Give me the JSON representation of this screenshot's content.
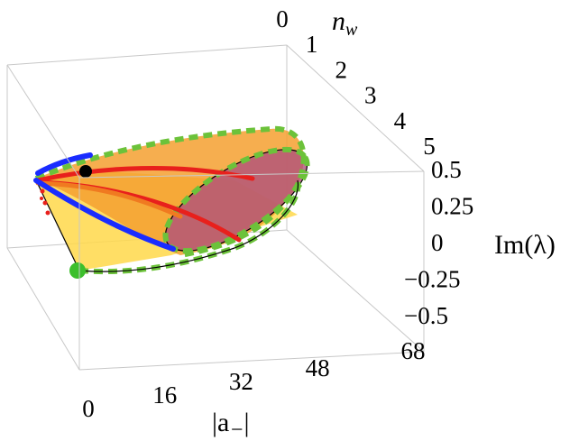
{
  "chart_data": {
    "type": "3d-surface",
    "title": "",
    "axes": {
      "x": {
        "label": "|a−|",
        "ticks": [
          "0",
          "16",
          "32",
          "48",
          "68"
        ],
        "range": [
          0,
          68
        ]
      },
      "y": {
        "label": "n_w",
        "ticks": [
          "0",
          "1",
          "2",
          "3",
          "4",
          "5"
        ],
        "range": [
          0,
          5
        ]
      },
      "z": {
        "label": "Im(λ)",
        "ticks": [
          "−0.5",
          "−0.25",
          "0",
          "0.25",
          "0.5"
        ],
        "range": [
          -0.5,
          0.5
        ]
      }
    },
    "box": true,
    "legend": "none",
    "colors": {
      "surface_fill": "#f5a030",
      "floor_fill": "#ffd84a",
      "end_disc": "#b0507a",
      "boundary_dashed": "#6cc23a",
      "red_curves": "#e8201c",
      "orange_curve": "#f07a20",
      "blue_curve": "#1a2cff",
      "marker_start": "#3cbf2c",
      "marker_black": "#000000"
    }
  },
  "labels": {
    "x_label_text": "|a",
    "x_label_sub": "−",
    "x_label_end": "|",
    "y_label_base": "n",
    "y_label_sub": "w",
    "z_label": "Im(λ)"
  }
}
